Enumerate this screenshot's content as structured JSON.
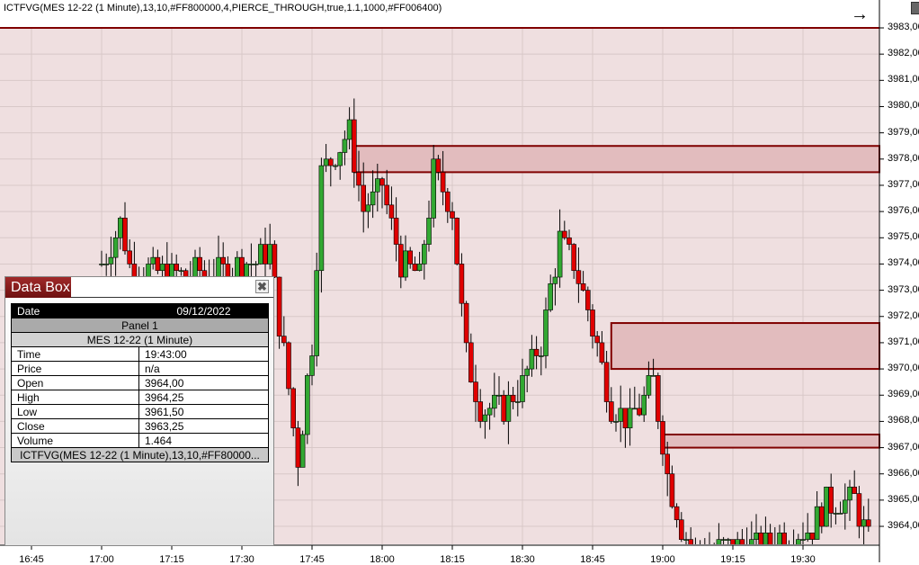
{
  "indicator_title": "ICTFVG(MES 12-22 (1 Minute),13,10,#FF800000,4,PIERCE_THROUGH,true,1.1,1000,#FF006400)",
  "icons": {
    "arrow": "→",
    "close": "✖"
  },
  "colors": {
    "background": "#efdfe0",
    "fvg_fill": "#e2bcbe",
    "fvg_border": "#800000",
    "up": "#32a832",
    "down": "#e00000"
  },
  "chart_data": {
    "type": "candlestick",
    "ylim": [
      3962.5,
      3983.6
    ],
    "y_ticks": [
      "3983,00",
      "3982,00",
      "3981,00",
      "3980,00",
      "3979,00",
      "3978,00",
      "3977,00",
      "3976,00",
      "3975,00",
      "3974,00",
      "3973,00",
      "3972,00",
      "3971,00",
      "3970,00",
      "3969,00",
      "3968,00",
      "3967,00",
      "3966,00",
      "3965,00",
      "3964,00"
    ],
    "x_ticks": [
      "16:45",
      "17:00",
      "17:15",
      "17:30",
      "17:45",
      "18:00",
      "18:15",
      "18:30",
      "18:45",
      "19:00",
      "19:15",
      "19:30"
    ],
    "approx_close_path": [
      [
        "17:00",
        3974
      ],
      [
        "17:04",
        3975.5
      ],
      [
        "17:06",
        3974
      ],
      [
        "17:17",
        3973.5
      ],
      [
        "17:32",
        3974
      ],
      [
        "17:36",
        3974.5
      ],
      [
        "17:42",
        3966.5
      ],
      [
        "17:45",
        3971
      ],
      [
        "17:47",
        3977.5
      ],
      [
        "17:53",
        3979
      ],
      [
        "17:56",
        3976
      ],
      [
        "18:00",
        3977
      ],
      [
        "18:04",
        3974
      ],
      [
        "18:08",
        3973.5
      ],
      [
        "18:11",
        3977.5
      ],
      [
        "18:15",
        3976
      ],
      [
        "18:18",
        3970.5
      ],
      [
        "18:21",
        3968.5
      ],
      [
        "18:26",
        3968.5
      ],
      [
        "18:30",
        3969.5
      ],
      [
        "18:34",
        3971
      ],
      [
        "18:38",
        3975
      ],
      [
        "18:41",
        3974
      ],
      [
        "18:46",
        3971
      ],
      [
        "18:49",
        3968.5
      ],
      [
        "18:53",
        3968
      ],
      [
        "18:58",
        3969.5
      ],
      [
        "19:01",
        3966
      ],
      [
        "19:04",
        3964
      ],
      [
        "19:07",
        3963
      ],
      [
        "19:18",
        3963.2
      ],
      [
        "19:31",
        3963.8
      ],
      [
        "19:35",
        3964.8
      ],
      [
        "19:41",
        3965
      ],
      [
        "19:44",
        3963.5
      ]
    ],
    "fvg_zones": [
      {
        "start": "17:54",
        "top": 3978.5,
        "bottom": 3977.5
      },
      {
        "start": "18:49",
        "top": 3971.75,
        "bottom": 3970.0
      },
      {
        "start": "19:00",
        "top": 3967.5,
        "bottom": 3967.0
      }
    ],
    "top_line": 3983.0
  },
  "databox": {
    "title": "Data Box",
    "date_label": "Date",
    "date": "09/12/2022",
    "panel": "Panel 1",
    "series": "MES 12-22 (1 Minute)",
    "rows": [
      {
        "label": "Time",
        "value": "19:43:00"
      },
      {
        "label": "Price",
        "value": "n/a"
      },
      {
        "label": "Open",
        "value": "3964,00"
      },
      {
        "label": "High",
        "value": "3964,25"
      },
      {
        "label": "Low",
        "value": "3961,50"
      },
      {
        "label": "Close",
        "value": "3963,25"
      },
      {
        "label": "Volume",
        "value": "1.464"
      }
    ],
    "indicator": "ICTFVG(MES 12-22 (1 Minute),13,10,#FF80000..."
  }
}
